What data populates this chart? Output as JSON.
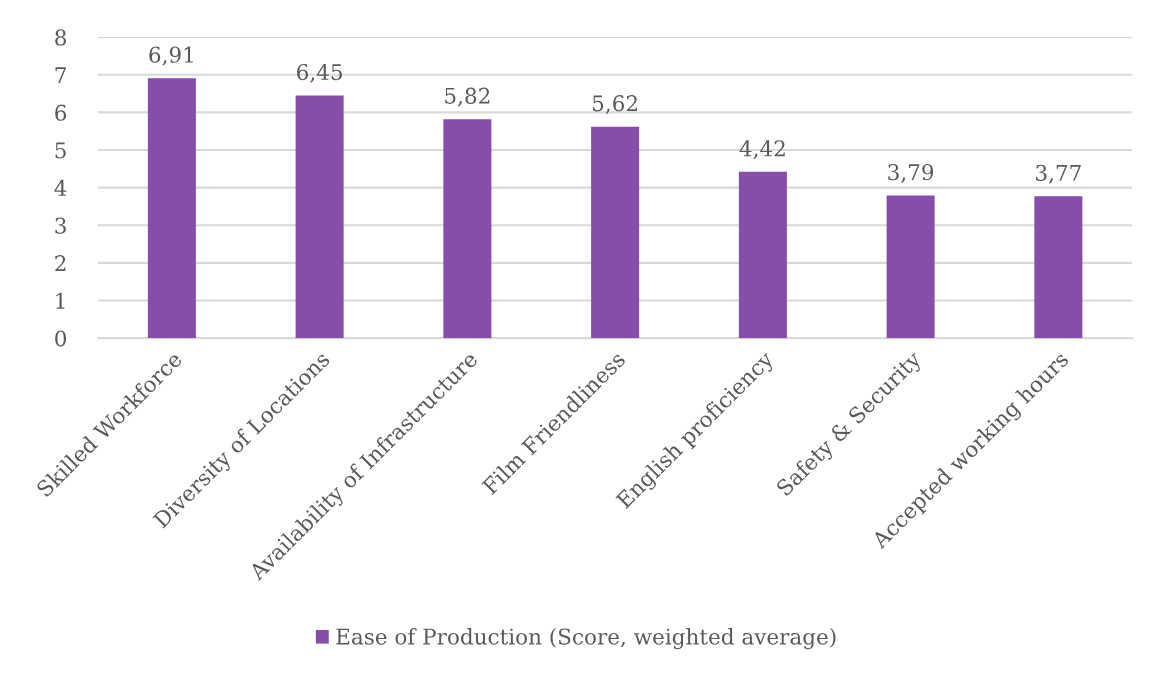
{
  "chart_data": {
    "type": "bar",
    "categories": [
      "Skilled Workforce",
      "Diversity of Locations",
      "Availability of Infrastructure",
      "Film Friendliness",
      "English proficiency",
      "Safety & Security",
      "Accepted working hours"
    ],
    "series": [
      {
        "name": "Ease of Production (Score, weighted average)",
        "color": "#864ea8",
        "values": [
          6.91,
          6.45,
          5.82,
          5.62,
          4.42,
          3.79,
          3.77
        ],
        "value_labels": [
          "6,91",
          "6,45",
          "5,82",
          "5,62",
          "4,42",
          "3,79",
          "3,77"
        ]
      }
    ],
    "ylim": [
      0,
      8
    ],
    "yticks": [
      0,
      1,
      2,
      3,
      4,
      5,
      6,
      7,
      8
    ],
    "grid": "y",
    "legend": "bottom"
  }
}
